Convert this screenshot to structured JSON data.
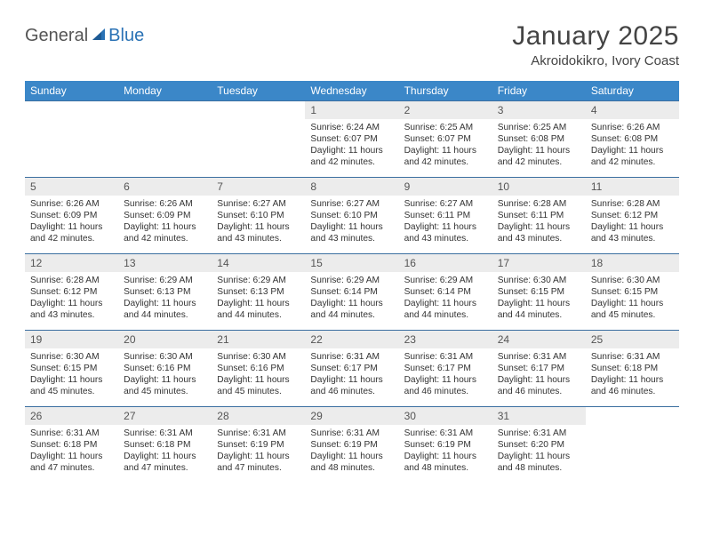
{
  "logo": {
    "general": "General",
    "blue": "Blue",
    "sail_color": "#2a72b5"
  },
  "title": "January 2025",
  "location": "Akroidokikro, Ivory Coast",
  "header_bg": "#3b87c8",
  "header_fg": "#ffffff",
  "daynum_bg": "#ececec",
  "rule_color": "#3b6fa0",
  "weekdays": [
    "Sunday",
    "Monday",
    "Tuesday",
    "Wednesday",
    "Thursday",
    "Friday",
    "Saturday"
  ],
  "weeks": [
    [
      {
        "n": "",
        "lines": []
      },
      {
        "n": "",
        "lines": []
      },
      {
        "n": "",
        "lines": []
      },
      {
        "n": "1",
        "lines": [
          "Sunrise: 6:24 AM",
          "Sunset: 6:07 PM",
          "Daylight: 11 hours and 42 minutes."
        ]
      },
      {
        "n": "2",
        "lines": [
          "Sunrise: 6:25 AM",
          "Sunset: 6:07 PM",
          "Daylight: 11 hours and 42 minutes."
        ]
      },
      {
        "n": "3",
        "lines": [
          "Sunrise: 6:25 AM",
          "Sunset: 6:08 PM",
          "Daylight: 11 hours and 42 minutes."
        ]
      },
      {
        "n": "4",
        "lines": [
          "Sunrise: 6:26 AM",
          "Sunset: 6:08 PM",
          "Daylight: 11 hours and 42 minutes."
        ]
      }
    ],
    [
      {
        "n": "5",
        "lines": [
          "Sunrise: 6:26 AM",
          "Sunset: 6:09 PM",
          "Daylight: 11 hours and 42 minutes."
        ]
      },
      {
        "n": "6",
        "lines": [
          "Sunrise: 6:26 AM",
          "Sunset: 6:09 PM",
          "Daylight: 11 hours and 42 minutes."
        ]
      },
      {
        "n": "7",
        "lines": [
          "Sunrise: 6:27 AM",
          "Sunset: 6:10 PM",
          "Daylight: 11 hours and 43 minutes."
        ]
      },
      {
        "n": "8",
        "lines": [
          "Sunrise: 6:27 AM",
          "Sunset: 6:10 PM",
          "Daylight: 11 hours and 43 minutes."
        ]
      },
      {
        "n": "9",
        "lines": [
          "Sunrise: 6:27 AM",
          "Sunset: 6:11 PM",
          "Daylight: 11 hours and 43 minutes."
        ]
      },
      {
        "n": "10",
        "lines": [
          "Sunrise: 6:28 AM",
          "Sunset: 6:11 PM",
          "Daylight: 11 hours and 43 minutes."
        ]
      },
      {
        "n": "11",
        "lines": [
          "Sunrise: 6:28 AM",
          "Sunset: 6:12 PM",
          "Daylight: 11 hours and 43 minutes."
        ]
      }
    ],
    [
      {
        "n": "12",
        "lines": [
          "Sunrise: 6:28 AM",
          "Sunset: 6:12 PM",
          "Daylight: 11 hours and 43 minutes."
        ]
      },
      {
        "n": "13",
        "lines": [
          "Sunrise: 6:29 AM",
          "Sunset: 6:13 PM",
          "Daylight: 11 hours and 44 minutes."
        ]
      },
      {
        "n": "14",
        "lines": [
          "Sunrise: 6:29 AM",
          "Sunset: 6:13 PM",
          "Daylight: 11 hours and 44 minutes."
        ]
      },
      {
        "n": "15",
        "lines": [
          "Sunrise: 6:29 AM",
          "Sunset: 6:14 PM",
          "Daylight: 11 hours and 44 minutes."
        ]
      },
      {
        "n": "16",
        "lines": [
          "Sunrise: 6:29 AM",
          "Sunset: 6:14 PM",
          "Daylight: 11 hours and 44 minutes."
        ]
      },
      {
        "n": "17",
        "lines": [
          "Sunrise: 6:30 AM",
          "Sunset: 6:15 PM",
          "Daylight: 11 hours and 44 minutes."
        ]
      },
      {
        "n": "18",
        "lines": [
          "Sunrise: 6:30 AM",
          "Sunset: 6:15 PM",
          "Daylight: 11 hours and 45 minutes."
        ]
      }
    ],
    [
      {
        "n": "19",
        "lines": [
          "Sunrise: 6:30 AM",
          "Sunset: 6:15 PM",
          "Daylight: 11 hours and 45 minutes."
        ]
      },
      {
        "n": "20",
        "lines": [
          "Sunrise: 6:30 AM",
          "Sunset: 6:16 PM",
          "Daylight: 11 hours and 45 minutes."
        ]
      },
      {
        "n": "21",
        "lines": [
          "Sunrise: 6:30 AM",
          "Sunset: 6:16 PM",
          "Daylight: 11 hours and 45 minutes."
        ]
      },
      {
        "n": "22",
        "lines": [
          "Sunrise: 6:31 AM",
          "Sunset: 6:17 PM",
          "Daylight: 11 hours and 46 minutes."
        ]
      },
      {
        "n": "23",
        "lines": [
          "Sunrise: 6:31 AM",
          "Sunset: 6:17 PM",
          "Daylight: 11 hours and 46 minutes."
        ]
      },
      {
        "n": "24",
        "lines": [
          "Sunrise: 6:31 AM",
          "Sunset: 6:17 PM",
          "Daylight: 11 hours and 46 minutes."
        ]
      },
      {
        "n": "25",
        "lines": [
          "Sunrise: 6:31 AM",
          "Sunset: 6:18 PM",
          "Daylight: 11 hours and 46 minutes."
        ]
      }
    ],
    [
      {
        "n": "26",
        "lines": [
          "Sunrise: 6:31 AM",
          "Sunset: 6:18 PM",
          "Daylight: 11 hours and 47 minutes."
        ]
      },
      {
        "n": "27",
        "lines": [
          "Sunrise: 6:31 AM",
          "Sunset: 6:18 PM",
          "Daylight: 11 hours and 47 minutes."
        ]
      },
      {
        "n": "28",
        "lines": [
          "Sunrise: 6:31 AM",
          "Sunset: 6:19 PM",
          "Daylight: 11 hours and 47 minutes."
        ]
      },
      {
        "n": "29",
        "lines": [
          "Sunrise: 6:31 AM",
          "Sunset: 6:19 PM",
          "Daylight: 11 hours and 48 minutes."
        ]
      },
      {
        "n": "30",
        "lines": [
          "Sunrise: 6:31 AM",
          "Sunset: 6:19 PM",
          "Daylight: 11 hours and 48 minutes."
        ]
      },
      {
        "n": "31",
        "lines": [
          "Sunrise: 6:31 AM",
          "Sunset: 6:20 PM",
          "Daylight: 11 hours and 48 minutes."
        ]
      },
      {
        "n": "",
        "lines": []
      }
    ]
  ]
}
